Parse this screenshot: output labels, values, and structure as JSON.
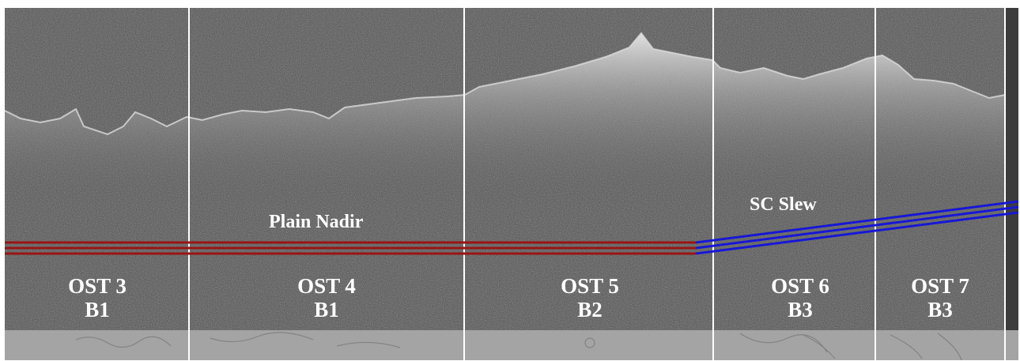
{
  "figure": {
    "modes": [
      {
        "label": "Plain Nadir",
        "line_color": "#9a1414"
      },
      {
        "label": "SC Slew",
        "line_color": "#1717d6"
      }
    ],
    "segments": [
      {
        "ost": "OST 3",
        "band": "B1"
      },
      {
        "ost": "OST 4",
        "band": "B1"
      },
      {
        "ost": "OST 5",
        "band": "B2"
      },
      {
        "ost": "OST 6",
        "band": "B3"
      },
      {
        "ost": "OST 7",
        "band": "B3"
      }
    ],
    "colors": {
      "radar_background": "#4f4f4f",
      "surface_echo": "#d6d6d6",
      "divider": "#ffffff",
      "surface_strip": "#a4a4a4"
    }
  }
}
